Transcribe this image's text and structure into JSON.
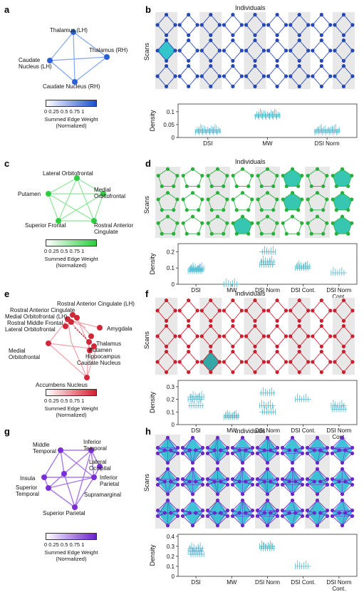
{
  "panels": [
    {
      "id": "a",
      "label": "a",
      "color": "#2a5fd6",
      "nodes": [
        "Thalamus (LH)",
        "Thalamus (RH)",
        "Caudate Nucleus (LH)",
        "Caudate Nucleus (RH)"
      ],
      "colorbar": {
        "ticks": "0   0.25  0.5  0.75   1",
        "title": "Summed Edge Weight (Normalized)",
        "gradient_end": "#1f4fd0"
      }
    },
    {
      "id": "b",
      "label": "b",
      "grid_title": "Individuals",
      "y_label": "Scans",
      "node_color": "#2548b3",
      "fill_color": "#20c0c8"
    },
    {
      "id": "c",
      "label": "c",
      "color": "#2ecc40",
      "nodes": [
        "Lateral Orbitofrontal",
        "Putamen",
        "Medial Orbitofrontal",
        "Superior Frontal",
        "Rostral Anterior Cingulate"
      ],
      "colorbar": {
        "ticks": "0   0.25  0.5  0.75   1",
        "title": "Summed Edge Weight (Normalized)",
        "gradient_end": "#2ecc40"
      }
    },
    {
      "id": "d",
      "label": "d",
      "grid_title": "Individuals",
      "y_label": "Scans",
      "node_color": "#27b03a",
      "fill_color": "#20c0a8"
    },
    {
      "id": "e",
      "label": "e",
      "color": "#d02838",
      "nodes": [
        "Rostral Anterior Cingulate (LH)",
        "Rostral Anterior Cingulate",
        "Medial Orbitofrontal (LH)",
        "Rostral Middle Frontal",
        "Lateral Orbitofrontal",
        "Amygdala",
        "Medial Orbitofrontal",
        "Thalamus",
        "Putamen",
        "Hippocampus",
        "Caudate Nucleus",
        "Accumbens Nucleus"
      ],
      "colorbar": {
        "ticks": "0   0.25  0.5  0.75   1",
        "title": "Summed Edge Weight (Normalized)",
        "gradient_end": "#d81f30"
      }
    },
    {
      "id": "f",
      "label": "f",
      "grid_title": "Individuals",
      "y_label": "Scans",
      "node_color": "#c8202f",
      "fill_color": "#20a0a0"
    },
    {
      "id": "g",
      "label": "g",
      "color": "#7a2fd6",
      "nodes": [
        "Middle Temporal",
        "Inferior Temporal",
        "Lateral Occipital",
        "Insula",
        "Superior Temporal",
        "Inferior Parietal",
        "Supramarginal",
        "Superior Parietal"
      ],
      "colorbar": {
        "ticks": "0   0.25  0.5  0.75   1",
        "title": "Summed Edge Weight (Normalized)",
        "gradient_end": "#6a1fd0"
      }
    },
    {
      "id": "h",
      "label": "h",
      "grid_title": "Individuals",
      "y_label": "Scans",
      "node_color": "#6a28c8",
      "fill_color": "#20b8d0"
    }
  ],
  "chart_data": [
    {
      "type": "scatter",
      "panel": "b",
      "ylabel": "Density",
      "categories": [
        "DSI",
        "MW",
        "DSI Norm"
      ],
      "yticks": [
        "0",
        "0.05",
        "0.1"
      ],
      "ylim": [
        0,
        0.13
      ],
      "series": [
        {
          "values": [
            0.02,
            0.03,
            0.025
          ]
        },
        {
          "values": [
            0.08,
            0.09,
            0.085
          ]
        },
        {
          "values": [
            0.02,
            0.025,
            0.03
          ]
        }
      ]
    },
    {
      "type": "scatter",
      "panel": "d",
      "ylabel": "Density",
      "categories": [
        "DSI",
        "MW",
        "DSI Norm",
        "DSI Cont.",
        "DSI Norm Cont."
      ],
      "yticks": [
        "0",
        "0.1",
        "0.2"
      ],
      "ylim": [
        0,
        0.25
      ],
      "series": [
        {
          "values": [
            0.08,
            0.09,
            0.1
          ]
        },
        {
          "values": [
            0.0
          ]
        },
        {
          "values": [
            0.12,
            0.14,
            0.2
          ]
        },
        {
          "values": [
            0.1,
            0.11
          ]
        },
        {
          "values": [
            0.07
          ]
        }
      ]
    },
    {
      "type": "scatter",
      "panel": "f",
      "ylabel": "Density",
      "categories": [
        "DSI",
        "MW",
        "DSI Norm",
        "DSI Cont.",
        "DSI Norm Cont."
      ],
      "yticks": [
        "0",
        "0.1",
        "0.2",
        "0.3"
      ],
      "ylim": [
        0,
        0.35
      ],
      "series": [
        {
          "values": [
            0.2,
            0.15,
            0.22
          ]
        },
        {
          "values": [
            0.06,
            0.07
          ]
        },
        {
          "values": [
            0.15,
            0.25,
            0.1
          ]
        },
        {
          "values": [
            0.2
          ]
        },
        {
          "values": [
            0.15,
            0.12
          ]
        }
      ]
    },
    {
      "type": "scatter",
      "panel": "h",
      "ylabel": "Density",
      "categories": [
        "DSI",
        "MW",
        "DSI Norm",
        "DSI Cont.",
        "DSI Norm Cont."
      ],
      "yticks": [
        "0",
        "0.1",
        "0.2",
        "0.3",
        "0.4"
      ],
      "ylim": [
        0,
        0.42
      ],
      "series": [
        {
          "values": [
            0.25,
            0.28,
            0.22
          ]
        },
        {
          "values": []
        },
        {
          "values": [
            0.3,
            0.28
          ]
        },
        {
          "values": [
            0.1
          ]
        },
        {
          "values": []
        }
      ]
    }
  ]
}
